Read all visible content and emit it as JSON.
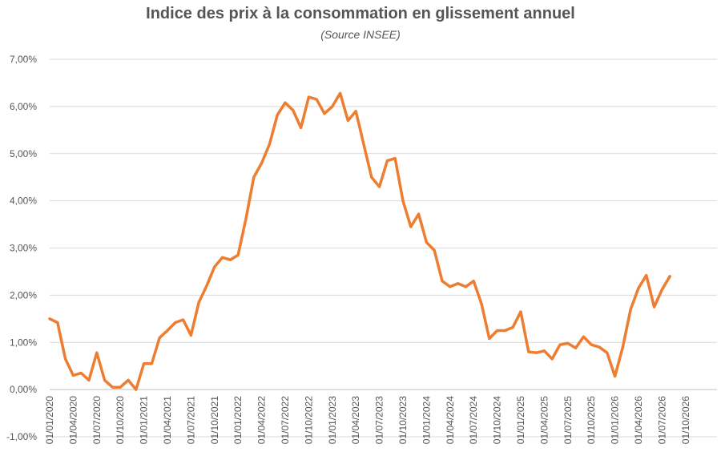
{
  "chart_data": {
    "type": "line",
    "title": "Indice des prix à la consommation en glissement annuel",
    "subtitle": "(Source INSEE)",
    "xlabel": "",
    "ylabel": "",
    "ylim": [
      -1.0,
      7.0
    ],
    "yticks": [
      -1,
      0,
      1,
      2,
      3,
      4,
      5,
      6,
      7
    ],
    "ytick_labels": [
      "-1,00%",
      "0,00%",
      "1,00%",
      "2,00%",
      "3,00%",
      "4,00%",
      "5,00%",
      "6,00%",
      "7,00%"
    ],
    "xtick_labels": [
      "01/01/2020",
      "01/04/2020",
      "01/07/2020",
      "01/10/2020",
      "01/01/2021",
      "01/04/2021",
      "01/07/2021",
      "01/10/2021",
      "01/01/2022",
      "01/04/2022",
      "01/07/2022",
      "01/10/2022",
      "01/01/2023",
      "01/04/2023",
      "01/07/2023",
      "01/10/2023",
      "01/01/2024",
      "01/04/2024",
      "01/07/2024",
      "01/10/2024",
      "01/01/2025",
      "01/04/2025",
      "01/07/2025",
      "01/10/2025",
      "01/01/2026",
      "01/04/2026",
      "01/07/2026",
      "01/10/2026"
    ],
    "grid": true,
    "line_color": "#ED7D31",
    "series": [
      {
        "x": [
          "2020-01",
          "2020-02",
          "2020-03",
          "2020-04",
          "2020-05",
          "2020-06",
          "2020-07",
          "2020-08",
          "2020-09",
          "2020-10",
          "2020-11",
          "2020-12",
          "2021-01",
          "2021-02",
          "2021-03",
          "2021-04",
          "2021-05",
          "2021-06",
          "2021-07",
          "2021-08",
          "2021-09",
          "2021-10",
          "2021-11",
          "2021-12",
          "2022-01",
          "2022-02",
          "2022-03",
          "2022-04",
          "2022-05",
          "2022-06",
          "2022-07",
          "2022-08",
          "2022-09",
          "2022-10",
          "2022-11",
          "2022-12",
          "2023-01",
          "2023-02",
          "2023-03",
          "2023-04",
          "2023-05",
          "2023-06",
          "2023-07",
          "2023-08",
          "2023-09",
          "2023-10",
          "2023-11",
          "2023-12",
          "2024-01",
          "2024-02",
          "2024-03",
          "2024-04",
          "2024-05",
          "2024-06",
          "2024-07",
          "2024-08",
          "2024-09",
          "2024-10",
          "2024-11",
          "2024-12",
          "2025-01",
          "2025-02",
          "2025-03",
          "2025-04",
          "2025-05",
          "2025-06",
          "2025-07",
          "2025-08",
          "2025-09",
          "2025-10",
          "2025-11",
          "2025-12",
          "2026-01",
          "2026-02",
          "2026-03",
          "2026-04",
          "2026-05",
          "2026-06",
          "2026-07",
          "2026-08"
        ],
        "values": [
          1.5,
          1.42,
          0.65,
          0.3,
          0.35,
          0.2,
          0.78,
          0.2,
          0.05,
          0.05,
          0.2,
          0.0,
          0.55,
          0.55,
          1.1,
          1.25,
          1.42,
          1.48,
          1.15,
          1.85,
          2.2,
          2.6,
          2.8,
          2.75,
          2.85,
          3.62,
          4.5,
          4.8,
          5.2,
          5.82,
          6.08,
          5.92,
          5.55,
          6.2,
          6.15,
          5.85,
          6.0,
          6.28,
          5.7,
          5.9,
          5.2,
          4.5,
          4.3,
          4.85,
          4.9,
          4.0,
          3.45,
          3.72,
          3.12,
          2.95,
          2.3,
          2.18,
          2.25,
          2.18,
          2.3,
          1.82,
          1.08,
          1.25,
          1.25,
          1.32,
          1.65,
          0.8,
          0.78,
          0.82,
          0.65,
          0.95,
          0.98,
          0.88,
          1.12,
          0.95,
          0.9,
          0.78,
          0.28,
          0.9,
          1.7,
          2.15,
          2.42,
          1.75,
          2.12,
          2.4
        ]
      }
    ]
  }
}
